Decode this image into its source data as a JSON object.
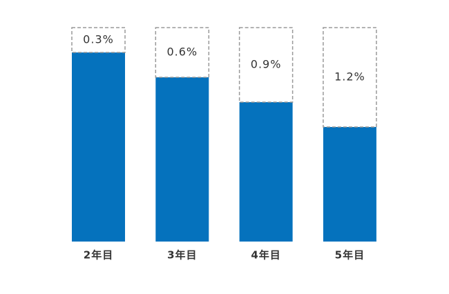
{
  "chart_data": {
    "type": "bar",
    "categories": [
      "2年目",
      "3年目",
      "4年目",
      "5年目"
    ],
    "values": [
      0.3,
      0.6,
      0.9,
      1.2
    ],
    "value_labels": [
      "0.3%",
      "0.6%",
      "0.9%",
      "1.2%"
    ],
    "color": "#0572bd"
  }
}
